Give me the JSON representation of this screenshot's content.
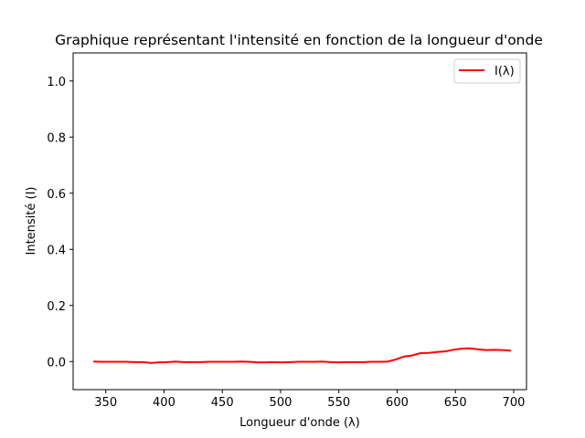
{
  "chart_data": {
    "type": "line",
    "title": "Graphique représentant l'intensité en fonction de la longueur d'onde",
    "xlabel": "Longueur d'onde (λ)",
    "ylabel": "Intensité (I)",
    "xlim": [
      322,
      711
    ],
    "ylim": [
      -0.1,
      1.1
    ],
    "xticks": [
      350,
      400,
      450,
      500,
      550,
      600,
      650,
      700
    ],
    "yticks": [
      0.0,
      0.2,
      0.4,
      0.6,
      0.8,
      1.0
    ],
    "xtick_labels": [
      "350",
      "400",
      "450",
      "500",
      "550",
      "600",
      "650",
      "700"
    ],
    "ytick_labels": [
      "0.0",
      "0.2",
      "0.4",
      "0.6",
      "0.8",
      "1.0"
    ],
    "grid": false,
    "legend_position": "top-right",
    "series": [
      {
        "name": "I(λ)",
        "color": "#ff0000",
        "x": [
          340,
          347,
          354,
          361,
          368,
          375,
          382,
          389,
          396,
          403,
          410,
          417,
          424,
          431,
          438,
          445,
          452,
          459,
          466,
          473,
          480,
          487,
          494,
          501,
          508,
          515,
          522,
          529,
          536,
          543,
          550,
          557,
          564,
          571,
          578,
          585,
          592,
          599,
          606,
          613,
          620,
          627,
          634,
          641,
          648,
          655,
          662,
          669,
          676,
          683,
          690,
          697
        ],
        "y": [
          0.0,
          -0.001,
          -0.001,
          -0.001,
          -0.001,
          -0.002,
          -0.002,
          -0.005,
          -0.003,
          -0.002,
          0.0,
          -0.002,
          -0.002,
          -0.002,
          -0.001,
          -0.001,
          -0.001,
          -0.001,
          0.0,
          -0.001,
          -0.003,
          -0.003,
          -0.002,
          -0.003,
          -0.002,
          -0.001,
          -0.001,
          -0.001,
          0.0,
          -0.002,
          -0.003,
          -0.002,
          -0.002,
          -0.002,
          -0.001,
          -0.001,
          0.0,
          0.008,
          0.018,
          0.022,
          0.03,
          0.031,
          0.034,
          0.036,
          0.042,
          0.046,
          0.047,
          0.044,
          0.041,
          0.042,
          0.041,
          0.039
        ]
      }
    ]
  }
}
